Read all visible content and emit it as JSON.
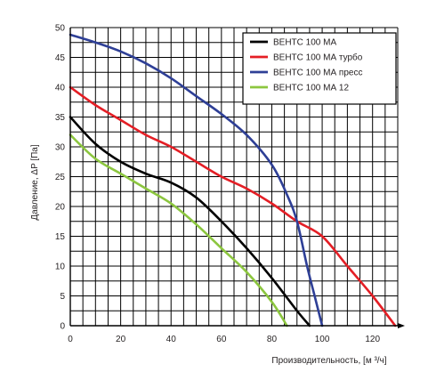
{
  "chart_data": {
    "type": "line",
    "xlabel": "Производительность, [м ³/ч]",
    "ylabel": "Давление, ΔP [Па]",
    "xlim": [
      0,
      130
    ],
    "ylim": [
      0,
      50
    ],
    "x_ticks": [
      0,
      20,
      40,
      60,
      80,
      100,
      120
    ],
    "y_ticks": [
      0,
      5,
      10,
      15,
      20,
      25,
      30,
      35,
      40,
      45,
      50
    ],
    "grid": true,
    "legend_position": "top-right",
    "series": [
      {
        "name": "ВЕНТС 100 МА",
        "color": "#000000",
        "points": [
          [
            0,
            35
          ],
          [
            10,
            30.5
          ],
          [
            20,
            27.5
          ],
          [
            30,
            25.5
          ],
          [
            40,
            24
          ],
          [
            50,
            21.5
          ],
          [
            60,
            17.5
          ],
          [
            70,
            13
          ],
          [
            80,
            8
          ],
          [
            90,
            2.5
          ],
          [
            95,
            0
          ]
        ]
      },
      {
        "name": "ВЕНТС 100 МА турбо",
        "color": "#e41e25",
        "points": [
          [
            0,
            40
          ],
          [
            10,
            37
          ],
          [
            20,
            34.5
          ],
          [
            30,
            32
          ],
          [
            40,
            30
          ],
          [
            50,
            27.5
          ],
          [
            60,
            25
          ],
          [
            70,
            23
          ],
          [
            80,
            20.5
          ],
          [
            90,
            17.5
          ],
          [
            100,
            15
          ],
          [
            110,
            10
          ],
          [
            120,
            5
          ],
          [
            129,
            0
          ]
        ]
      },
      {
        "name": "ВЕНТС 100 МА пресс",
        "color": "#2e3f96",
        "points": [
          [
            0,
            48.8
          ],
          [
            10,
            47.5
          ],
          [
            20,
            46
          ],
          [
            30,
            44
          ],
          [
            40,
            41.5
          ],
          [
            50,
            38.5
          ],
          [
            60,
            35.5
          ],
          [
            70,
            32
          ],
          [
            80,
            27
          ],
          [
            86,
            22
          ],
          [
            90,
            17.5
          ],
          [
            94,
            10
          ],
          [
            97,
            5
          ],
          [
            100,
            0
          ]
        ]
      },
      {
        "name": "ВЕНТС 100 МА 12",
        "color": "#8cc63f",
        "points": [
          [
            0,
            32
          ],
          [
            10,
            28
          ],
          [
            20,
            25.5
          ],
          [
            30,
            23
          ],
          [
            40,
            20.5
          ],
          [
            50,
            17
          ],
          [
            60,
            13
          ],
          [
            70,
            9
          ],
          [
            80,
            4
          ],
          [
            86,
            0
          ]
        ]
      }
    ]
  }
}
